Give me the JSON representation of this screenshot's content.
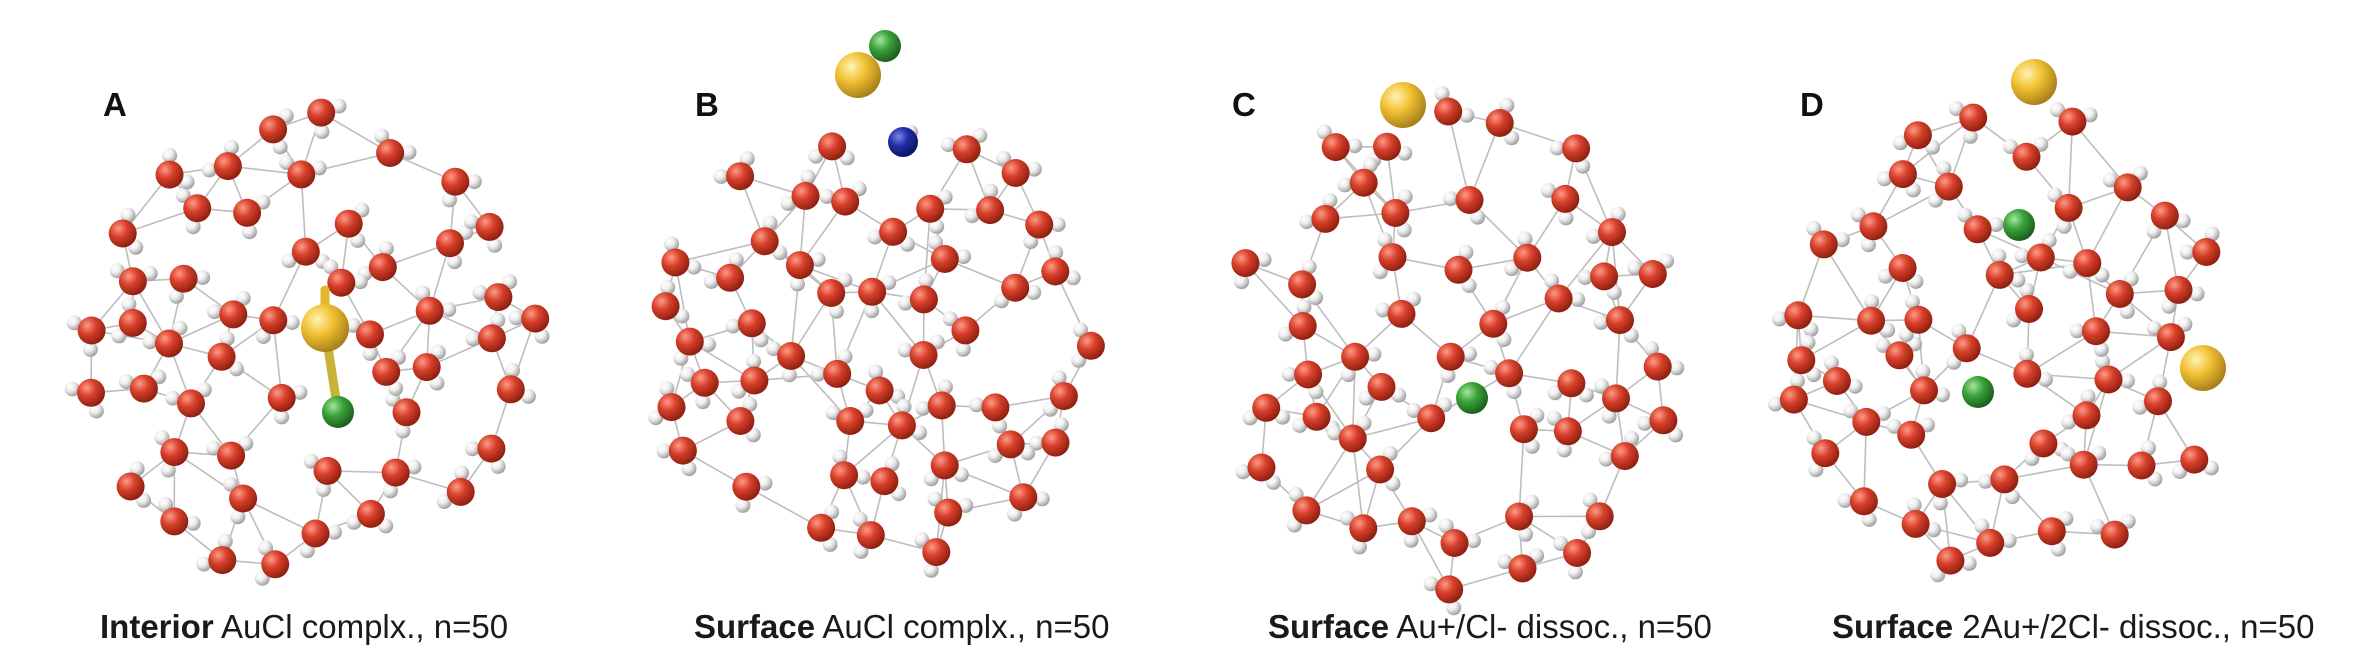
{
  "figure": {
    "atom_colors": {
      "oxygen": "#d7402b",
      "hydrogen": "#eeeeee",
      "gold": "#f2c233",
      "chlorine": "#3aa23a",
      "nitrogen": "#1f2fa8",
      "bond": "#bdbdbd"
    },
    "panels": [
      {
        "letter": "A",
        "caption_bold": "Interior",
        "caption_rest": " AuCl complx., n=50",
        "waters": 50,
        "solutes": [
          "gold-interior-bond",
          "chlorine"
        ]
      },
      {
        "letter": "B",
        "caption_bold": "Surface",
        "caption_rest": " AuCl complx., n=50",
        "waters": 50,
        "solutes": [
          "gold-surface",
          "chlorine",
          "nitrogen"
        ]
      },
      {
        "letter": "C",
        "caption_bold": "Surface",
        "caption_rest": " Au+/Cl- dissoc., n=50",
        "waters": 50,
        "solutes": [
          "gold-surface",
          "chlorine"
        ]
      },
      {
        "letter": "D",
        "caption_bold": "Surface",
        "caption_rest": " 2Au+/2Cl- dissoc., n=50",
        "waters": 50,
        "solutes": [
          "gold-surface",
          "gold-side",
          "chlorine",
          "chlorine"
        ]
      }
    ]
  }
}
